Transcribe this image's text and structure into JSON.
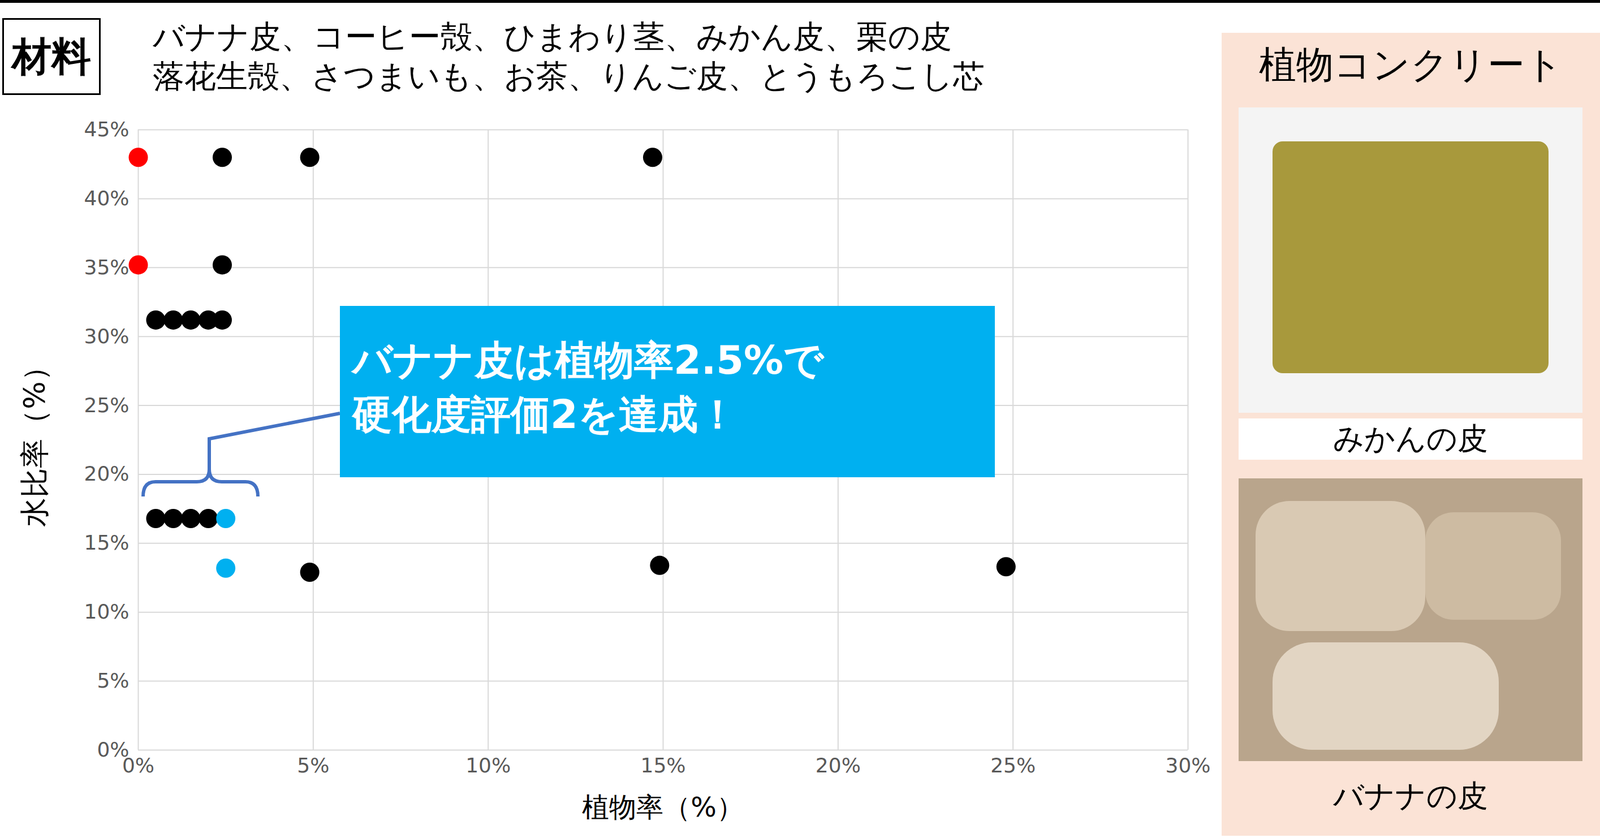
{
  "header": {
    "label": "材料",
    "materials": [
      "バナナ皮、コーヒー殻、ひまわり茎、みかん皮、栗の皮",
      "落花生殻、さつまいも、お茶、りんご皮、とうもろこし芯"
    ]
  },
  "chart_data": {
    "type": "scatter",
    "x": [
      0,
      0,
      2.4,
      4.9,
      14.7,
      2.4,
      0.5,
      1,
      1.5,
      2,
      2.4,
      0.5,
      1,
      1.5,
      2,
      2.5,
      2.5,
      4.9,
      14.9,
      24.8
    ],
    "values": [
      43,
      35.2,
      43,
      43,
      43,
      35.2,
      31.2,
      31.2,
      31.2,
      31.2,
      31.2,
      16.8,
      16.8,
      16.8,
      16.8,
      16.8,
      13.2,
      12.9,
      13.4,
      13.3
    ],
    "colors": [
      "#ff0000",
      "#ff0000",
      "#000000",
      "#000000",
      "#000000",
      "#000000",
      "#000000",
      "#000000",
      "#000000",
      "#000000",
      "#000000",
      "#000000",
      "#000000",
      "#000000",
      "#000000",
      "#00b0f0",
      "#00b0f0",
      "#000000",
      "#000000",
      "#000000"
    ],
    "marker": "circle",
    "xlabel": "植物率（%）",
    "ylabel": "水比率（%）",
    "xlim": [
      0,
      30
    ],
    "ylim": [
      0,
      45
    ],
    "xticks": [
      {
        "value": 0,
        "label": "0%"
      },
      {
        "value": 5,
        "label": "5%"
      },
      {
        "value": 10,
        "label": "10%"
      },
      {
        "value": 15,
        "label": "15%"
      },
      {
        "value": 20,
        "label": "20%"
      },
      {
        "value": 25,
        "label": "25%"
      },
      {
        "value": 30,
        "label": "30%"
      }
    ],
    "yticks": [
      {
        "value": 0,
        "label": "0%"
      },
      {
        "value": 5,
        "label": "5%"
      },
      {
        "value": 10,
        "label": "10%"
      },
      {
        "value": 15,
        "label": "15%"
      },
      {
        "value": 20,
        "label": "20%"
      },
      {
        "value": 25,
        "label": "25%"
      },
      {
        "value": 30,
        "label": "30%"
      },
      {
        "value": 35,
        "label": "35%"
      },
      {
        "value": 40,
        "label": "40%"
      },
      {
        "value": 45,
        "label": "45%"
      }
    ],
    "grid": true,
    "annotation": [
      "バナナ皮は植物率2.5%で",
      "硬化度評価2を達成！"
    ]
  },
  "panel": {
    "title": "植物コンクリート",
    "images": [
      {
        "label": "みかんの皮"
      },
      {
        "label": "バナナの皮"
      }
    ]
  }
}
